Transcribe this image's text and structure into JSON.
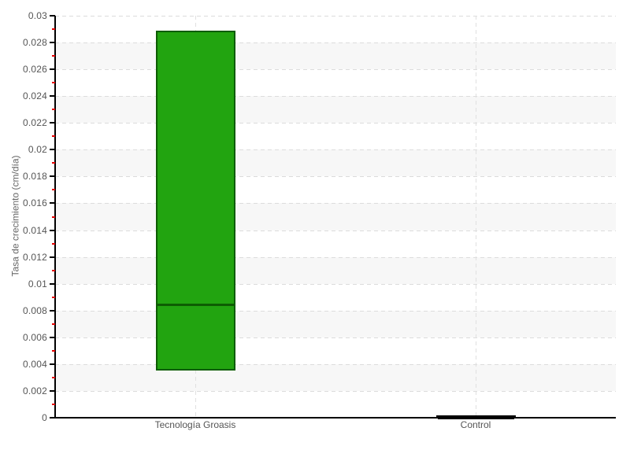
{
  "chart_data": {
    "type": "box",
    "title": "",
    "xlabel": "",
    "ylabel": "Tasa de crecimiento (cm/día)",
    "ylim": [
      0,
      0.03
    ],
    "ytick_step": 0.002,
    "minor_tick_step": 0.001,
    "ytick_labels": [
      "0",
      "0.002",
      "0.004",
      "0.006",
      "0.008",
      "0.01",
      "0.012",
      "0.014",
      "0.016",
      "0.018",
      "0.02",
      "0.022",
      "0.024",
      "0.026",
      "0.028",
      "0.03"
    ],
    "categories": [
      "Tecnología Groasis",
      "Control"
    ],
    "series": [
      {
        "category": "Tecnología Groasis",
        "box_low": 0.0035,
        "median": 0.0085,
        "box_high": 0.0289,
        "fill_color": "#22a410",
        "border_color": "#0d5c03"
      },
      {
        "category": "Control",
        "box_low": 0.0,
        "median": 0.0001,
        "box_high": 0.0002,
        "fill_color": "#000000",
        "border_color": "#000000"
      }
    ],
    "legend": null,
    "grid": {
      "horizontal_dashed": true,
      "vertical_dashed_at_categories": true,
      "alternating_row_bands": true
    },
    "colors": {
      "background": "#ffffff",
      "band": "#f7f7f7",
      "h_gridline": "#dcdcdc",
      "v_gridline": "#e0e0e0",
      "axis": "#000000",
      "major_tick": "#000000",
      "minor_tick": "#e60000",
      "tick_label": "#555555",
      "axis_title": "#666666"
    }
  }
}
